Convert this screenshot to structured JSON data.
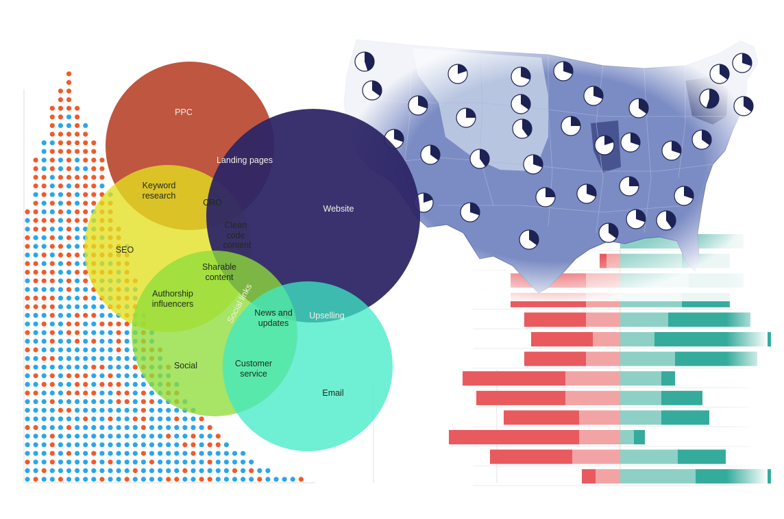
{
  "venn": {
    "circles": [
      {
        "id": "ppc",
        "label": "PPC",
        "color": "#b8442a"
      },
      {
        "id": "seo",
        "label": "SEO",
        "color": "#e3e020"
      },
      {
        "id": "website",
        "label": "Website",
        "color": "#2d2566"
      },
      {
        "id": "social",
        "label": "Social",
        "color": "#8fdd3a"
      },
      {
        "id": "email",
        "label": "Email",
        "color": "#3fe9c4"
      }
    ],
    "overlaps": {
      "landing_pages": "Landing pages",
      "keyword_research_1": "Keyword",
      "keyword_research_2": "research",
      "cro": "CRO",
      "clean_code_1": "Clean",
      "clean_code_2": "code",
      "clean_code_3": "content",
      "sharable_1": "Sharable",
      "sharable_2": "content",
      "authorship_1": "Authorship",
      "authorship_2": "influencers",
      "social_links": "Social links",
      "news_1": "News and",
      "news_2": "updates",
      "upselling": "Upselling",
      "customer_service_1": "Customer",
      "customer_service_2": "service"
    }
  },
  "decor": {
    "dot_color_blue": "#2aa6ec",
    "dot_color_orange": "#f05a2c",
    "map_fill": "#7b8cc4",
    "map_fill_light": "#c3cfe6",
    "bar_red": "#e85a5e",
    "bar_red_light": "#f2a4a4",
    "bar_teal": "#35ab9c",
    "bar_teal_light": "#8ed0c6"
  }
}
